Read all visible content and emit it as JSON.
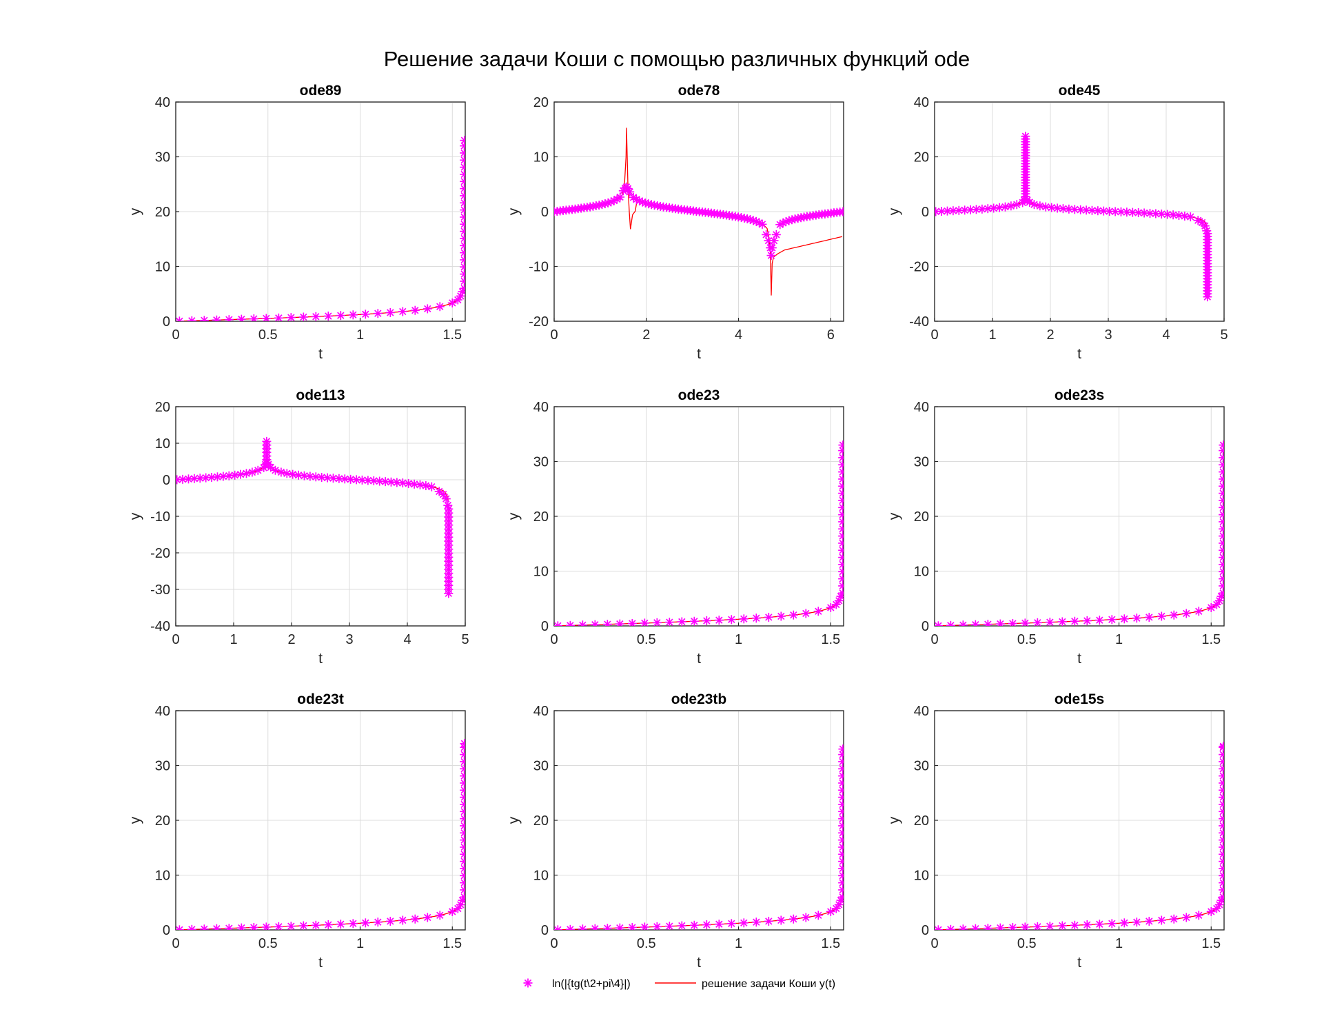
{
  "figure": {
    "title": "Решение задачи Коши с помощью различных функций ode",
    "colors": {
      "numeric": "#ff00ff",
      "exact": "#ff0000",
      "axes": "#262626",
      "grid": "#dcdcdc"
    },
    "legend": {
      "items": [
        {
          "label": "ln(|{tg(t\\2+pi\\4}|)",
          "marker": "asterisk",
          "color": "#ff00ff"
        },
        {
          "label": "решение задачи Коши y(t)",
          "marker": "line",
          "color": "#ff0000"
        }
      ],
      "position": "bottom-center"
    }
  },
  "chart_data": [
    {
      "type": "line",
      "title": "ode89",
      "xlabel": "t",
      "ylabel": "y",
      "xlim": [
        0,
        1.57
      ],
      "ylim": [
        0,
        40
      ],
      "xticks": [
        0,
        0.5,
        1,
        1.5
      ],
      "xtick_labels": [
        "0",
        "0.5",
        "1",
        "1.5"
      ],
      "yticks": [
        0,
        10,
        20,
        30,
        40
      ],
      "ytick_labels": [
        "0",
        "10",
        "20",
        "30",
        "40"
      ],
      "grid": true,
      "solution": "increasing",
      "series": [
        {
          "name": "ln(|{tg(t\\2+pi\\4}|)",
          "marker": "asterisk",
          "x_end": 1.57,
          "y_end": 33
        },
        {
          "name": "решение задачи Коши y(t)",
          "style": "line"
        }
      ]
    },
    {
      "type": "line",
      "title": "ode78",
      "xlabel": "t",
      "ylabel": "y",
      "xlim": [
        0,
        6.28
      ],
      "ylim": [
        -20,
        20
      ],
      "xticks": [
        0,
        2,
        4,
        6
      ],
      "xtick_labels": [
        "0",
        "2",
        "4",
        "6"
      ],
      "yticks": [
        -20,
        -10,
        0,
        10,
        20
      ],
      "ytick_labels": [
        "-20",
        "-10",
        "0",
        "10",
        "20"
      ],
      "grid": true,
      "solution": "full_period",
      "exact_peak": {
        "t": 1.57,
        "y": 15.3,
        "dip": -3.2
      },
      "exact_trough": {
        "t": 4.71,
        "y": -15.3,
        "end": -4.5
      },
      "series": [
        {
          "name": "ln(|{tg(t\\2+pi\\4}|)",
          "marker": "asterisk",
          "peak": 4.5,
          "trough": -8
        },
        {
          "name": "решение задачи Коши y(t)",
          "style": "line"
        }
      ]
    },
    {
      "type": "line",
      "title": "ode45",
      "xlabel": "t",
      "ylabel": "y",
      "xlim": [
        0,
        5
      ],
      "ylim": [
        -40,
        40
      ],
      "xticks": [
        0,
        1,
        2,
        3,
        4,
        5
      ],
      "xtick_labels": [
        "0",
        "1",
        "2",
        "3",
        "4",
        "5"
      ],
      "yticks": [
        -40,
        -20,
        0,
        20,
        40
      ],
      "ytick_labels": [
        "-40",
        "-20",
        "0",
        "20",
        "40"
      ],
      "grid": true,
      "solution": "up_then_down",
      "spike_top": 28,
      "spike_bottom": -32,
      "series": [
        {
          "name": "ln(|{tg(t\\2+pi\\4}|)",
          "marker": "asterisk"
        },
        {
          "name": "решение задачи Коши y(t)",
          "style": "line"
        }
      ]
    },
    {
      "type": "line",
      "title": "ode113",
      "xlabel": "t",
      "ylabel": "y",
      "xlim": [
        0,
        5
      ],
      "ylim": [
        -40,
        20
      ],
      "xticks": [
        0,
        1,
        2,
        3,
        4,
        5
      ],
      "xtick_labels": [
        "0",
        "1",
        "2",
        "3",
        "4",
        "5"
      ],
      "yticks": [
        -40,
        -30,
        -20,
        -10,
        0,
        10,
        20
      ],
      "ytick_labels": [
        "-40",
        "-30",
        "-20",
        "-10",
        "0",
        "10",
        "20"
      ],
      "grid": true,
      "solution": "up_then_down",
      "spike_top": 10.5,
      "spike_bottom": -32,
      "series": [
        {
          "name": "ln(|{tg(t\\2+pi\\4}|)",
          "marker": "asterisk"
        },
        {
          "name": "решение задачи Коши y(t)",
          "style": "line"
        }
      ]
    },
    {
      "type": "line",
      "title": "ode23",
      "xlabel": "t",
      "ylabel": "y",
      "xlim": [
        0,
        1.57
      ],
      "ylim": [
        0,
        40
      ],
      "xticks": [
        0,
        0.5,
        1,
        1.5
      ],
      "xtick_labels": [
        "0",
        "0.5",
        "1",
        "1.5"
      ],
      "yticks": [
        0,
        10,
        20,
        30,
        40
      ],
      "ytick_labels": [
        "0",
        "10",
        "20",
        "30",
        "40"
      ],
      "grid": true,
      "solution": "increasing",
      "series": [
        {
          "name": "ln(|{tg(t\\2+pi\\4}|)",
          "marker": "asterisk",
          "x_end": 1.57,
          "y_end": 33
        },
        {
          "name": "решение задачи Коши y(t)",
          "style": "line"
        }
      ]
    },
    {
      "type": "line",
      "title": "ode23s",
      "xlabel": "t",
      "ylabel": "y",
      "xlim": [
        0,
        1.57
      ],
      "ylim": [
        0,
        40
      ],
      "xticks": [
        0,
        0.5,
        1,
        1.5
      ],
      "xtick_labels": [
        "0",
        "0.5",
        "1",
        "1.5"
      ],
      "yticks": [
        0,
        10,
        20,
        30,
        40
      ],
      "ytick_labels": [
        "0",
        "10",
        "20",
        "30",
        "40"
      ],
      "grid": true,
      "solution": "increasing",
      "series": [
        {
          "name": "ln(|{tg(t\\2+pi\\4}|)",
          "marker": "asterisk",
          "x_end": 1.57,
          "y_end": 33
        },
        {
          "name": "решение задачи Коши y(t)",
          "style": "line"
        }
      ]
    },
    {
      "type": "line",
      "title": "ode23t",
      "xlabel": "t",
      "ylabel": "y",
      "xlim": [
        0,
        1.57
      ],
      "ylim": [
        0,
        40
      ],
      "xticks": [
        0,
        0.5,
        1,
        1.5
      ],
      "xtick_labels": [
        "0",
        "0.5",
        "1",
        "1.5"
      ],
      "yticks": [
        0,
        10,
        20,
        30,
        40
      ],
      "ytick_labels": [
        "0",
        "10",
        "20",
        "30",
        "40"
      ],
      "grid": true,
      "solution": "increasing",
      "series": [
        {
          "name": "ln(|{tg(t\\2+pi\\4}|)",
          "marker": "asterisk",
          "x_end": 1.57,
          "y_end": 34
        },
        {
          "name": "решение задачи Коши y(t)",
          "style": "line"
        }
      ]
    },
    {
      "type": "line",
      "title": "ode23tb",
      "xlabel": "t",
      "ylabel": "y",
      "xlim": [
        0,
        1.57
      ],
      "ylim": [
        0,
        40
      ],
      "xticks": [
        0,
        0.5,
        1,
        1.5
      ],
      "xtick_labels": [
        "0",
        "0.5",
        "1",
        "1.5"
      ],
      "yticks": [
        0,
        10,
        20,
        30,
        40
      ],
      "ytick_labels": [
        "0",
        "10",
        "20",
        "30",
        "40"
      ],
      "grid": true,
      "solution": "increasing",
      "series": [
        {
          "name": "ln(|{tg(t\\2+pi\\4}|)",
          "marker": "asterisk",
          "x_end": 1.57,
          "y_end": 33
        },
        {
          "name": "решение задачи Коши y(t)",
          "style": "line"
        }
      ]
    },
    {
      "type": "line",
      "title": "ode15s",
      "xlabel": "t",
      "ylabel": "y",
      "xlim": [
        0,
        1.57
      ],
      "ylim": [
        0,
        40
      ],
      "xticks": [
        0,
        0.5,
        1,
        1.5
      ],
      "xtick_labels": [
        "0",
        "0.5",
        "1",
        "1.5"
      ],
      "yticks": [
        0,
        10,
        20,
        30,
        40
      ],
      "ytick_labels": [
        "0",
        "10",
        "20",
        "30",
        "40"
      ],
      "grid": true,
      "solution": "increasing",
      "series": [
        {
          "name": "ln(|{tg(t\\2+pi\\4}|)",
          "marker": "asterisk",
          "x_end": 1.57,
          "y_end": 33.5
        },
        {
          "name": "решение задачи Коши y(t)",
          "style": "line"
        }
      ]
    }
  ]
}
